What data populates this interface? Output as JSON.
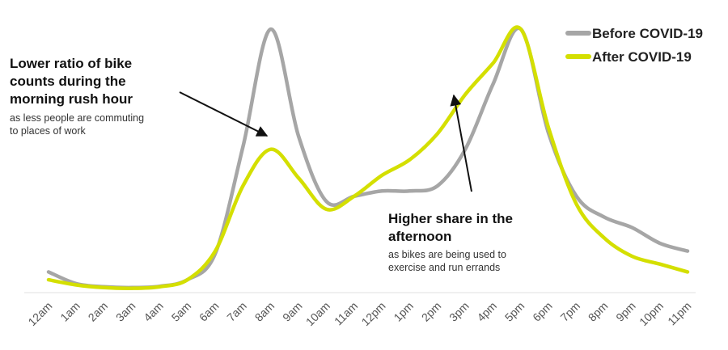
{
  "chart_data": {
    "type": "line",
    "title": "",
    "xlabel": "",
    "ylabel": "",
    "grid": false,
    "legend_position": "top-right",
    "categories": [
      "12am",
      "1am",
      "2am",
      "3am",
      "4am",
      "5am",
      "6am",
      "7am",
      "8am",
      "9am",
      "10am",
      "11am",
      "12pm",
      "1pm",
      "2pm",
      "3pm",
      "4pm",
      "5pm",
      "6pm",
      "7pm",
      "8pm",
      "9pm",
      "10pm",
      "11pm"
    ],
    "series": [
      {
        "name": "Before COVID-19",
        "color": "#a6a6a6",
        "values": [
          7,
          2.5,
          1.3,
          1.0,
          1.5,
          4,
          14,
          55,
          100,
          59,
          34,
          36,
          38,
          38,
          40,
          54,
          79,
          100,
          60,
          36,
          28,
          24,
          18,
          15
        ]
      },
      {
        "name": "After COVID-19",
        "color": "#d4df00",
        "values": [
          4,
          2,
          1,
          0.7,
          1.3,
          4,
          15,
          40,
          54,
          43,
          31,
          36,
          44,
          50,
          60,
          75,
          87,
          100,
          62,
          33,
          20,
          13,
          10,
          7
        ]
      }
    ],
    "ylim": [
      0,
      105
    ],
    "annotations": [
      {
        "title_lines": [
          "Lower ratio of bike",
          "counts during the",
          "morning rush hour"
        ],
        "subtitle_lines": [
          "as less people are commuting",
          "to places of work"
        ],
        "points_to": "8am"
      },
      {
        "title_lines": [
          "Higher share in the",
          "afternoon"
        ],
        "subtitle_lines": [
          "as bikes are being used to",
          "exercise and run errands"
        ],
        "points_to": "2pm"
      }
    ]
  },
  "legend": {
    "before_label": "Before COVID-19",
    "after_label": "After COVID-19"
  },
  "annotations": {
    "morning": {
      "line1": "Lower ratio of bike",
      "line2": "counts during the",
      "line3": "morning rush hour",
      "sub1": "as less people are commuting",
      "sub2": "to places of work"
    },
    "afternoon": {
      "line1": "Higher share in the",
      "line2": "afternoon",
      "sub1": "as bikes are being used to",
      "sub2": "exercise and run errands"
    }
  }
}
